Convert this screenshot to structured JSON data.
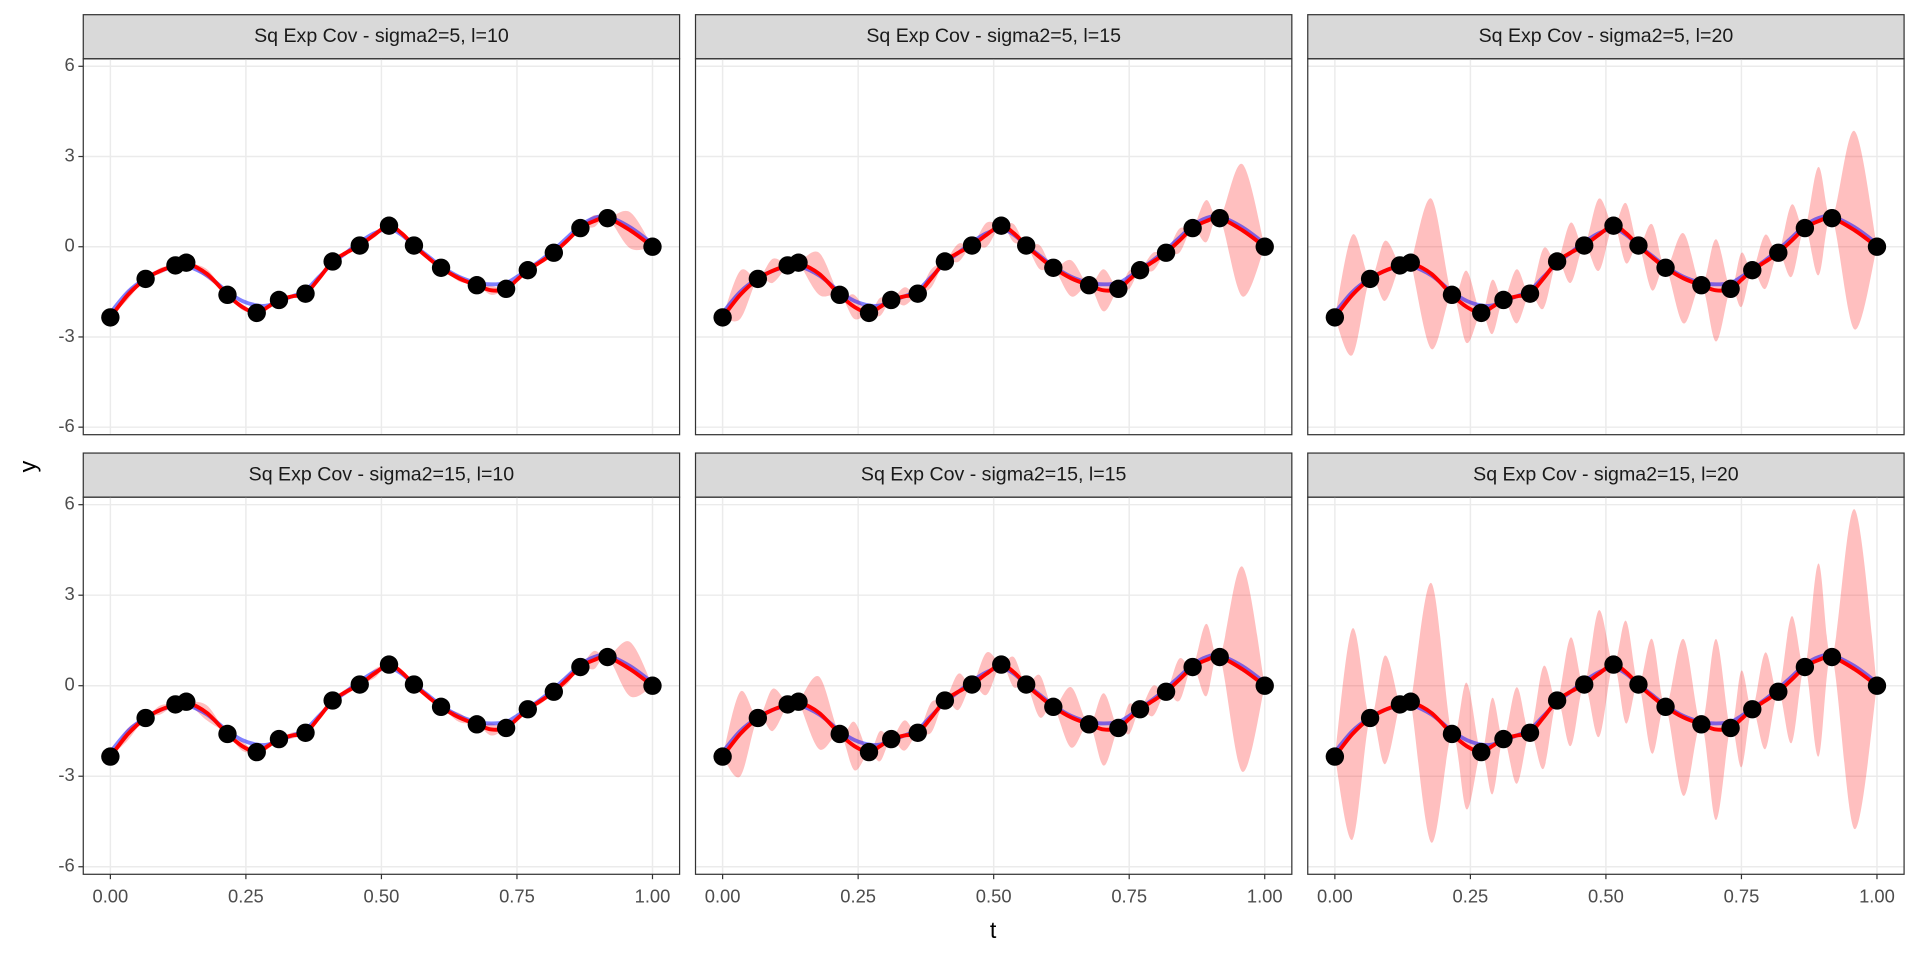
{
  "chart_data": {
    "type": "line",
    "xlabel": "t",
    "ylabel": "y",
    "xlim": [
      -0.05,
      1.05
    ],
    "ylim": [
      -6.25,
      6.25
    ],
    "xticks": [
      {
        "value": 0,
        "label": "0.00"
      },
      {
        "value": 0.25,
        "label": "0.25"
      },
      {
        "value": 0.5,
        "label": "0.50"
      },
      {
        "value": 0.75,
        "label": "0.75"
      },
      {
        "value": 1,
        "label": "1.00"
      }
    ],
    "yticks": [
      -6,
      -3,
      0,
      3,
      6
    ],
    "grid": true,
    "x": [
      0,
      0.0325,
      0.065,
      0.0925,
      0.12,
      0.13,
      0.14,
      0.178,
      0.216,
      0.243,
      0.27,
      0.2905,
      0.311,
      0.3355,
      0.36,
      0.385,
      0.41,
      0.435,
      0.46,
      0.487,
      0.514,
      0.537,
      0.56,
      0.585,
      0.61,
      0.643,
      0.676,
      0.703,
      0.73,
      0.75,
      0.77,
      0.794,
      0.818,
      0.8425,
      0.867,
      0.892,
      0.917,
      0.9585,
      1.0
    ],
    "series": [
      {
        "color": "#0000ff",
        "opacity": 0.5,
        "values": [
          -2.2,
          -1.5,
          -1.05,
          -0.8,
          -0.65,
          -0.62,
          -0.62,
          -0.95,
          -1.5,
          -1.8,
          -1.95,
          -1.95,
          -1.8,
          -1.65,
          -1.45,
          -1.0,
          -0.55,
          -0.2,
          0.15,
          0.45,
          0.6,
          0.4,
          0.05,
          -0.3,
          -0.65,
          -1.0,
          -1.2,
          -1.25,
          -1.2,
          -1.0,
          -0.75,
          -0.45,
          -0.1,
          0.3,
          0.7,
          0.95,
          1.0,
          0.65,
          0.1
        ]
      },
      {
        "color": "#ff0000",
        "opacity": 1,
        "values": [
          -2.35,
          -1.6,
          -1.07,
          -0.8,
          -0.62,
          -0.57,
          -0.53,
          -0.9,
          -1.6,
          -2.0,
          -2.2,
          -2.0,
          -1.77,
          -1.65,
          -1.56,
          -1.05,
          -0.49,
          -0.2,
          0.04,
          0.4,
          0.7,
          0.45,
          0.04,
          -0.35,
          -0.7,
          -1.05,
          -1.28,
          -1.45,
          -1.4,
          -1.1,
          -0.78,
          -0.5,
          -0.2,
          0.2,
          0.62,
          0.85,
          0.95,
          0.55,
          0.0
        ]
      }
    ],
    "band_color": "#ff0000",
    "points": {
      "color": "#000000",
      "x": [
        0,
        0.065,
        0.12,
        0.14,
        0.216,
        0.27,
        0.311,
        0.36,
        0.41,
        0.46,
        0.514,
        0.56,
        0.61,
        0.676,
        0.73,
        0.77,
        0.818,
        0.867,
        0.917,
        1.0
      ],
      "values": [
        -2.35,
        -1.07,
        -0.62,
        -0.53,
        -1.6,
        -2.2,
        -1.77,
        -1.56,
        -0.49,
        0.04,
        0.7,
        0.04,
        -0.7,
        -1.28,
        -1.4,
        -0.78,
        -0.2,
        0.62,
        0.95,
        0.0
      ]
    },
    "facets": [
      {
        "title": "Sq Exp Cov - sigma2=5, l=10",
        "errors": [
          0,
          0.15,
          0,
          0.1,
          0,
          0.05,
          0,
          0.15,
          0,
          0.1,
          0,
          0.05,
          0,
          0.05,
          0,
          0.05,
          0,
          0.05,
          0,
          0.1,
          0,
          0.05,
          0,
          0.05,
          0,
          0.1,
          0,
          0.15,
          0,
          0.05,
          0,
          0.05,
          0,
          0.1,
          0,
          0.2,
          0,
          0.6,
          0
        ]
      },
      {
        "title": "Sq Exp Cov - sigma2=5, l=15",
        "errors": [
          0,
          0.8,
          0,
          0.4,
          0,
          0.05,
          0,
          0.7,
          0,
          0.4,
          0,
          0.3,
          0,
          0.3,
          0,
          0.3,
          0,
          0.3,
          0,
          0.4,
          0,
          0.3,
          0,
          0.4,
          0,
          0.6,
          0,
          0.7,
          0,
          0.3,
          0,
          0.3,
          0,
          0.4,
          0,
          0.7,
          0,
          2.2,
          0
        ]
      },
      {
        "title": "Sq Exp Cov - sigma2=5, l=20",
        "errors": [
          0,
          2.0,
          0,
          1.0,
          0,
          0.1,
          0,
          2.5,
          0,
          1.2,
          0,
          0.9,
          0,
          0.9,
          0,
          1.0,
          0,
          1.0,
          0,
          1.2,
          0,
          1.0,
          0,
          1.1,
          0,
          1.5,
          0,
          1.7,
          0,
          0.9,
          0,
          0.9,
          0,
          1.2,
          0,
          1.8,
          0,
          3.3,
          0
        ]
      },
      {
        "title": "Sq Exp Cov - sigma2=15, l=10",
        "errors": [
          0,
          0.2,
          0,
          0.15,
          0,
          0.05,
          0,
          0.25,
          0,
          0.15,
          0,
          0.1,
          0,
          0.1,
          0,
          0.1,
          0,
          0.1,
          0,
          0.15,
          0,
          0.1,
          0,
          0.1,
          0,
          0.15,
          0,
          0.2,
          0,
          0.1,
          0,
          0.1,
          0,
          0.15,
          0,
          0.3,
          0,
          0.9,
          0
        ]
      },
      {
        "title": "Sq Exp Cov - sigma2=15, l=15",
        "errors": [
          0,
          1.4,
          0,
          0.7,
          0,
          0.1,
          0,
          1.2,
          0,
          0.8,
          0,
          0.5,
          0,
          0.5,
          0,
          0.5,
          0,
          0.6,
          0,
          0.7,
          0,
          0.5,
          0,
          0.7,
          0,
          1.0,
          0,
          1.2,
          0,
          0.5,
          0,
          0.5,
          0,
          0.7,
          0,
          1.2,
          0,
          3.4,
          0
        ]
      },
      {
        "title": "Sq Exp Cov - sigma2=15, l=20",
        "errors": [
          0,
          3.5,
          0,
          1.8,
          0,
          0.2,
          0,
          4.3,
          0,
          2.1,
          0,
          1.6,
          0,
          1.6,
          0,
          1.7,
          0,
          1.8,
          0,
          2.1,
          0,
          1.7,
          0,
          1.9,
          0,
          2.6,
          0,
          3.0,
          0,
          1.6,
          0,
          1.6,
          0,
          2.1,
          0,
          3.2,
          0,
          5.3,
          0
        ]
      }
    ]
  }
}
